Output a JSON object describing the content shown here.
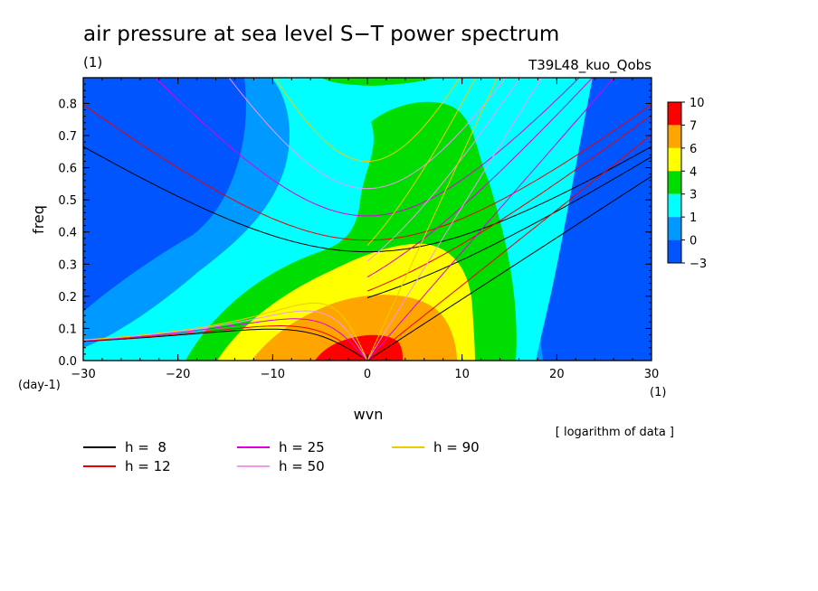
{
  "chart_data": {
    "type": "heatmap",
    "title": "air pressure at sea level S−T power spectrum",
    "subtitle_left": "(1)",
    "subtitle_right": "T39L48_kuo_Qobs",
    "xlabel": "wvn",
    "ylabel": "freq",
    "x_unit": "(1)",
    "y_unit": "(day-1)",
    "xlim": [
      -30,
      30
    ],
    "ylim": [
      0,
      0.88
    ],
    "x_ticks": [
      -30,
      -20,
      -10,
      0,
      10,
      20,
      30
    ],
    "y_ticks": [
      0.0,
      0.1,
      0.2,
      0.3,
      0.4,
      0.5,
      0.6,
      0.7,
      0.8
    ],
    "x_tick_labels": [
      "−30",
      "−20",
      "−10",
      "0",
      "10",
      "20",
      "30"
    ],
    "y_tick_labels": [
      "0.0",
      "0.1",
      "0.2",
      "0.3",
      "0.4",
      "0.5",
      "0.6",
      "0.7",
      "0.8"
    ],
    "colorbar": {
      "levels": [
        "10",
        "7",
        "6",
        "4",
        "3",
        "1",
        "0",
        "−3"
      ],
      "colors": [
        "#ff0000",
        "#ffa500",
        "#ffff00",
        "#00dd00",
        "#00ffff",
        "#0099ff",
        "#0055ff"
      ]
    },
    "note": "[ logarithm of data ]",
    "dispersion_curves": [
      {
        "name": "h =  8",
        "color": "#000000",
        "h": 8
      },
      {
        "name": "h = 12",
        "color": "#ee0000",
        "h": 12
      },
      {
        "name": "h = 25",
        "color": "#dd00dd",
        "h": 25
      },
      {
        "name": "h = 50",
        "color": "#ee99ee",
        "h": 50
      },
      {
        "name": "h = 90",
        "color": "#eecc00",
        "h": 90
      }
    ]
  }
}
